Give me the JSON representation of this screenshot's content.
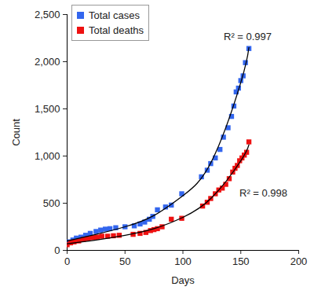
{
  "chart_data": {
    "type": "scatter",
    "x_label": "Days",
    "y_label": "Count",
    "xlim": [
      0,
      200
    ],
    "xticks": [
      0,
      50,
      100,
      150,
      200
    ],
    "ylim": [
      0,
      2500
    ],
    "yticks": [
      0,
      500,
      {
        "value": 1000,
        "label": "1,000"
      },
      {
        "value": 1500,
        "label": "1,500"
      },
      {
        "value": 2000,
        "label": "2,000"
      },
      {
        "value": 2500,
        "label": "2,500"
      }
    ],
    "grid": false,
    "legend": "top-left",
    "series": [
      {
        "name": "Total cases",
        "color": "#3366ee",
        "marker": "square",
        "x": [
          2,
          5,
          8,
          12,
          16,
          20,
          25,
          29,
          33,
          37,
          42,
          50,
          58,
          63,
          67,
          71,
          74,
          78,
          85,
          90,
          99,
          116,
          121,
          124,
          128,
          132,
          135,
          139,
          142,
          144,
          146,
          148,
          150,
          152,
          154,
          157
        ],
        "values": [
          90,
          110,
          130,
          140,
          160,
          180,
          200,
          215,
          225,
          230,
          240,
          250,
          260,
          280,
          300,
          330,
          360,
          430,
          460,
          480,
          600,
          780,
          850,
          920,
          980,
          1070,
          1200,
          1300,
          1420,
          1530,
          1680,
          1720,
          1800,
          1850,
          1990,
          2140
        ],
        "trend": {
          "x": [
            0,
            25,
            50,
            75,
            100,
            125,
            150,
            157
          ],
          "values": [
            100,
            170,
            250,
            370,
            580,
            950,
            1780,
            2150
          ]
        },
        "annotation": "R² = 0.997"
      },
      {
        "name": "Total deaths",
        "color": "#ee1111",
        "marker": "square",
        "x": [
          0,
          3,
          6,
          10,
          14,
          18,
          22,
          26,
          30,
          35,
          40,
          45,
          57,
          63,
          68,
          72,
          75,
          78,
          82,
          90,
          99,
          117,
          121,
          124,
          128,
          131,
          134,
          137,
          140,
          143,
          145,
          147,
          149,
          151,
          153,
          155,
          157
        ],
        "values": [
          60,
          80,
          90,
          100,
          115,
          125,
          135,
          140,
          150,
          150,
          155,
          160,
          170,
          180,
          190,
          210,
          220,
          230,
          250,
          330,
          340,
          470,
          510,
          550,
          600,
          640,
          660,
          700,
          760,
          830,
          870,
          900,
          950,
          980,
          1010,
          1040,
          1150
        ],
        "trend": {
          "x": [
            0,
            25,
            50,
            75,
            100,
            125,
            150,
            157
          ],
          "values": [
            70,
            110,
            160,
            230,
            350,
            560,
            950,
            1120
          ]
        },
        "annotation": "R² = 0.998"
      }
    ]
  }
}
